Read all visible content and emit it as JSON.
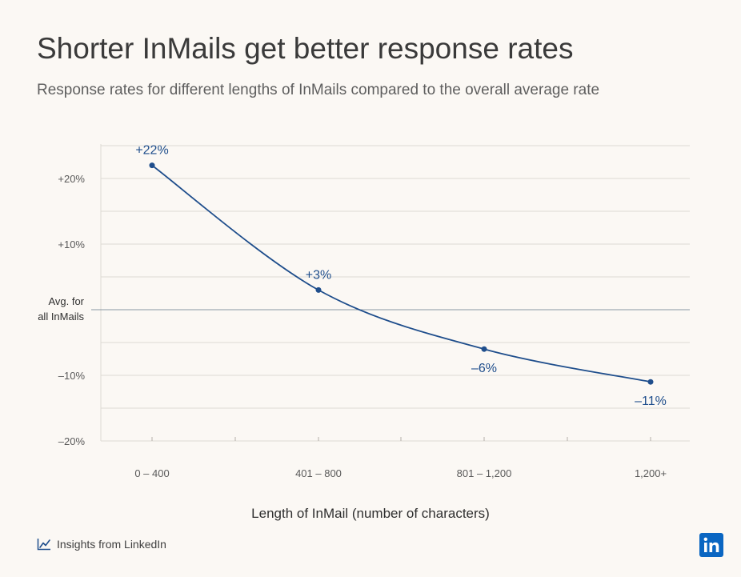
{
  "title": "Shorter InMails get better response rates",
  "subtitle": "Response rates for different lengths of InMails compared to the overall average rate",
  "footer": {
    "brand_text": "Insights from LinkedIn",
    "logo_text": "in"
  },
  "colors": {
    "line": "#1f4e8c",
    "grid": "#dedad3",
    "baseline": "#8a97a3",
    "background": "#fbf8f4"
  },
  "chart_data": {
    "type": "line",
    "title": "Shorter InMails get better response rates",
    "xlabel": "Length of InMail (number of characters)",
    "ylabel": "",
    "categories": [
      "0 – 400",
      "401 – 800",
      "801 – 1,200",
      "1,200+"
    ],
    "series": [
      {
        "values": [
          22,
          3,
          -6,
          -11
        ],
        "labels": [
          "+22%",
          "+3%",
          "–6%",
          "–11%"
        ]
      }
    ],
    "ylim": [
      -20,
      25
    ],
    "yticks": [
      20,
      10,
      -10,
      -20
    ],
    "ytick_labels": [
      "+20%",
      "+10%",
      "–10%",
      "–20%"
    ],
    "baseline": {
      "value": 0,
      "label_line1": "Avg. for",
      "label_line2": "all InMails"
    },
    "grid": true,
    "legend": "none"
  }
}
